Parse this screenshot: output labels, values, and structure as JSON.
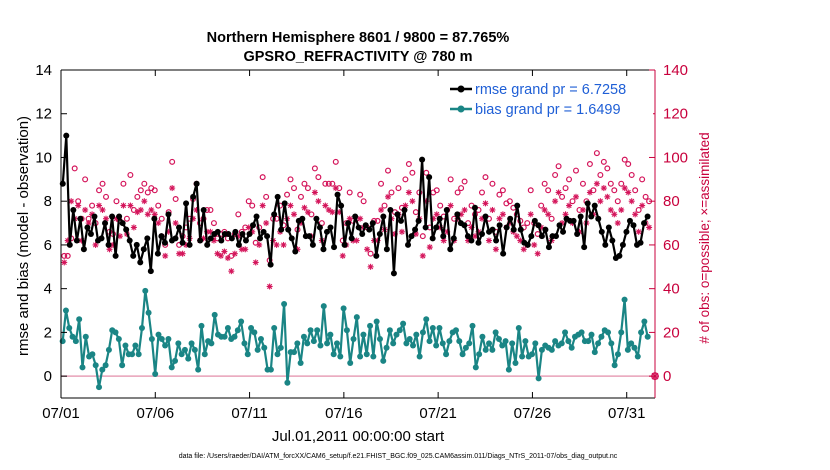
{
  "chart_data": {
    "type": "line",
    "title": "Northern Hemisphere 8601 / 9800 = 87.765%",
    "subtitle": "GPSRO_REFRACTIVITY @ 780 m",
    "xlabel": "Jul.01,2011 00:00:00 start",
    "ylabel": "rmse and bias (model - observation)",
    "ylabel_right": "# of obs: o=possible; ×=assimilated",
    "footnote": "data file: /Users/raeder/DAI/ATM_forcXX/CAM6_setup/f.e21.FHIST_BGC.f09_025.CAM6assim.011/Diags_NTrS_2011-07/obs_diag_output.nc",
    "xlim": [
      0,
      31.5
    ],
    "ylim": [
      -1,
      14
    ],
    "ylim_right": [
      -10,
      140
    ],
    "x_ticks": [
      0,
      5,
      10,
      15,
      20,
      25,
      30
    ],
    "x_ticklabels": [
      "07/01",
      "07/06",
      "07/11",
      "07/16",
      "07/21",
      "07/26",
      "07/31"
    ],
    "y_ticks": [
      0,
      2,
      4,
      6,
      8,
      10,
      12,
      14
    ],
    "y_ticks_right": [
      0,
      20,
      40,
      60,
      80,
      100,
      120,
      140
    ],
    "legend": [
      "rmse grand pr = 6.7258",
      "bias grand pr = 1.6499"
    ],
    "legend_position": "top-right",
    "colors": {
      "rmse": "#000000",
      "bias": "#1a8585",
      "obs": "#d4145a",
      "zero_line": "#e8a0b8",
      "axis_right": "#c8003c",
      "legend_text": "#1f5fd6"
    },
    "series": [
      {
        "name": "rmse",
        "values": [
          8.8,
          11.0,
          6.0,
          7.6,
          6.2,
          7.2,
          5.8,
          6.8,
          6.5,
          7.3,
          6.2,
          6.3,
          7.0,
          6.0,
          7.3,
          5.5,
          7.3,
          7.0,
          6.7,
          6.2,
          5.5,
          6.0,
          5.2,
          5.8,
          6.3,
          4.8,
          7.2,
          5.6,
          6.4,
          6.1,
          7.4,
          6.2,
          6.3,
          6.8,
          6.1,
          7.9,
          6.0,
          8.2,
          8.8,
          6.2,
          7.6,
          6.0,
          6.3,
          6.5,
          6.6,
          6.2,
          6.5,
          6.5,
          6.3,
          6.6,
          6.0,
          6.5,
          6.2,
          6.5,
          6.9,
          7.3,
          6.3,
          6.6,
          6.4,
          5.1,
          7.4,
          8.2,
          6.7,
          7.9,
          6.7,
          6.3,
          5.7,
          7.1,
          7.2,
          6.4,
          6.4,
          6.0,
          7.2,
          6.8,
          5.8,
          6.6,
          6.8,
          5.9,
          8.3,
          7.8,
          6.0,
          7.0,
          6.3,
          7.3,
          6.8,
          6.5,
          6.9,
          6.7,
          7.0,
          5.5,
          6.5,
          7.3,
          5.8,
          7.6,
          4.7,
          7.4,
          7.1,
          7.6,
          6.0,
          6.4,
          6.7,
          7.1,
          9.9,
          6.8,
          9.1,
          6.3,
          6.8,
          7.2,
          6.4,
          7.6,
          5.8,
          6.3,
          7.4,
          7.0,
          6.9,
          6.4,
          6.2,
          7.7,
          6.1,
          6.5,
          7.3,
          6.6,
          6.7,
          6.2,
          6.9,
          5.6,
          6.8,
          7.2,
          6.7,
          7.8,
          6.7,
          6.1,
          6.0,
          6.4,
          7.1,
          6.9,
          6.4,
          6.7,
          5.9,
          6.4,
          6.4,
          6.9,
          6.6,
          7.2,
          7.1,
          7.1,
          6.5,
          7.3,
          5.9,
          7.9,
          7.3,
          7.8,
          7.2,
          6.6,
          6.0,
          6.8,
          6.2,
          5.4,
          5.5,
          6.0,
          6.6,
          7.1,
          6.9,
          6.0,
          6.1,
          7.0,
          7.3
        ]
      },
      {
        "name": "bias",
        "values": [
          1.6,
          3.0,
          2.2,
          1.8,
          1.6,
          2.6,
          0.4,
          1.8,
          0.9,
          1.0,
          0.5,
          -0.5,
          0.3,
          0.5,
          1.2,
          2.1,
          2.0,
          1.7,
          0.5,
          1.4,
          1.0,
          1.0,
          1.4,
          1.0,
          2.2,
          3.9,
          2.9,
          1.7,
          0.1,
          1.9,
          1.7,
          1.4,
          1.7,
          0.4,
          0.7,
          1.5,
          1.0,
          1.2,
          0.8,
          1.5,
          1.2,
          0.3,
          2.3,
          1.0,
          1.6,
          1.5,
          2.8,
          1.9,
          1.8,
          1.8,
          2.2,
          1.7,
          1.8,
          2.1,
          2.5,
          1.5,
          1.0,
          2.2,
          2.0,
          1.2,
          1.7,
          1.3,
          0.3,
          0.3,
          2.2,
          1.0,
          1.3,
          3.3,
          -0.3,
          1.1,
          1.1,
          1.5,
          0.6,
          1.8,
          1.5,
          2.1,
          1.6,
          2.1,
          1.4,
          3.2,
          1.5,
          1.9,
          1.0,
          1.5,
          0.9,
          3.1,
          2.1,
          0.6,
          1.7,
          2.7,
          0.9,
          1.9,
          1.0,
          2.3,
          0.9,
          2.5,
          1.7,
          0.7,
          1.3,
          2.1,
          1.5,
          1.9,
          2.1,
          2.4,
          1.5,
          1.7,
          1.4,
          1.9,
          0.9,
          2.0,
          2.6,
          1.6,
          2.2,
          1.4,
          2.2,
          1.5,
          1.0,
          1.6,
          2.0,
          2.1,
          1.6,
          1.0,
          1.3,
          1.5,
          2.3,
          0.4,
          1.0,
          1.8,
          1.2,
          1.5,
          1.2,
          2.0,
          1.7,
          1.4,
          1.6,
          0.3,
          1.5,
          0.6,
          2.2,
          0.9,
          1.6,
          0.9,
          1.0,
          1.5,
          -0.1,
          1.2,
          1.4,
          1.3,
          1.2,
          1.6,
          1.4,
          1.5,
          2.0,
          1.6,
          1.3,
          1.8,
          1.9,
          2.0,
          1.6,
          1.6,
          1.9,
          1.1,
          1.5,
          1.8,
          2.1,
          2.0,
          1.5,
          0.5,
          1.0,
          2.0,
          3.5,
          1.2,
          1.5,
          1.3,
          0.9,
          2.0,
          2.5,
          1.8
        ]
      },
      {
        "name": "possible",
        "values": [
          55,
          55,
          63,
          95,
          80,
          72,
          90,
          72,
          78,
          70,
          85,
          88,
          82,
          66,
          65,
          80,
          71,
          88,
          72,
          92,
          76,
          82,
          85,
          88,
          84,
          86,
          85,
          78,
          72,
          60,
          75,
          98,
          81,
          60,
          64,
          68,
          72,
          81,
          88,
          70,
          72,
          76,
          76,
          70,
          63,
          65,
          66,
          63,
          55,
          65,
          74,
          66,
          68,
          80,
          78,
          61,
          68,
          91,
          82,
          53,
          72,
          72,
          78,
          69,
          83,
          90,
          86,
          67,
          82,
          88,
          86,
          74,
          95,
          91,
          70,
          88,
          88,
          88,
          98,
          86,
          62,
          70,
          84,
          71,
          72,
          83,
          80,
          68,
          56,
          71,
          71,
          88,
          78,
          94,
          84,
          75,
          86,
          77,
          90,
          97,
          93,
          75,
          84,
          64,
          93,
          68,
          84,
          85,
          78,
          73,
          76,
          90,
          72,
          84,
          86,
          89,
          70,
          78,
          74,
          76,
          84,
          91,
          72,
          88,
          66,
          83,
          85,
          79,
          80,
          77,
          74,
          71,
          68,
          70,
          85,
          70,
          65,
          78,
          88,
          85,
          72,
          92,
          96,
          82,
          86,
          90,
          80,
          94,
          76,
          88,
          80,
          97,
          85,
          102,
          92,
          98,
          95,
          88,
          85,
          80,
          88,
          99,
          97,
          92,
          85,
          76,
          90,
          82,
          80
        ]
      },
      {
        "name": "assimilated",
        "values": [
          52,
          62,
          80,
          72,
          78,
          62,
          76,
          70,
          74,
          60,
          78,
          76,
          72,
          58,
          60,
          72,
          64,
          78,
          65,
          78,
          68,
          75,
          76,
          80,
          74,
          76,
          74,
          70,
          64,
          55,
          66,
          86,
          70,
          56,
          56,
          60,
          63,
          72,
          76,
          62,
          63,
          66,
          66,
          62,
          56,
          55,
          57,
          54,
          48,
          56,
          64,
          58,
          58,
          68,
          66,
          52,
          60,
          78,
          70,
          41,
          62,
          60,
          66,
          60,
          72,
          78,
          74,
          58,
          70,
          77,
          75,
          64,
          84,
          80,
          62,
          78,
          76,
          75,
          86,
          75,
          55,
          60,
          72,
          62,
          62,
          72,
          68,
          58,
          50,
          62,
          62,
          76,
          67,
          82,
          72,
          65,
          74,
          66,
          78,
          84,
          80,
          65,
          72,
          55,
          80,
          59,
          72,
          74,
          68,
          62,
          66,
          78,
          62,
          72,
          74,
          76,
          62,
          68,
          64,
          66,
          72,
          79,
          62,
          76,
          58,
          72,
          74,
          68,
          70,
          66,
          64,
          62,
          58,
          60,
          74,
          60,
          56,
          68,
          76,
          74,
          62,
          80,
          84,
          70,
          74,
          78,
          70,
          82,
          66,
          76,
          70,
          84,
          74,
          88,
          80,
          86,
          82,
          76,
          74,
          70,
          76,
          86,
          84,
          80,
          74,
          66,
          78,
          70,
          68
        ]
      }
    ]
  }
}
